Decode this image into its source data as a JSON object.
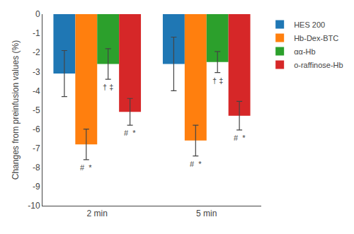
{
  "chart_data": {
    "type": "bar",
    "ylabel": "Changes from preinfusion values (%)",
    "categories": [
      "2 min",
      "5 min"
    ],
    "series": [
      {
        "name": "HES 200",
        "values": [
          -3.1,
          -2.6
        ],
        "errors": [
          1.2,
          1.4
        ]
      },
      {
        "name": "Hb-Dex-BTC",
        "values": [
          -6.8,
          -6.6
        ],
        "errors": [
          0.8,
          0.8
        ]
      },
      {
        "name": "αα-Hb",
        "values": [
          -2.6,
          -2.5
        ],
        "errors": [
          0.8,
          0.55
        ]
      },
      {
        "name": "o-raffinose-Hb",
        "values": [
          -5.1,
          -5.3
        ],
        "errors": [
          0.7,
          0.75
        ]
      }
    ],
    "ylim": [
      -10,
      0
    ],
    "yticks": [
      0,
      -1,
      -2,
      -3,
      -4,
      -5,
      -6,
      -7,
      -8,
      -9,
      -10
    ],
    "grid": false,
    "legend": "upper right",
    "annotations": [
      {
        "category": "2 min",
        "series": "Hb-Dex-BTC",
        "text": "#  *"
      },
      {
        "category": "2 min",
        "series": "αα-Hb",
        "text": "† ‡"
      },
      {
        "category": "2 min",
        "series": "o-raffinose-Hb",
        "text": "#  *"
      },
      {
        "category": "5 min",
        "series": "Hb-Dex-BTC",
        "text": "#  *"
      },
      {
        "category": "5 min",
        "series": "αα-Hb",
        "text": "† ‡"
      },
      {
        "category": "5 min",
        "series": "o-raffinose-Hb",
        "text": "#  *"
      }
    ]
  }
}
